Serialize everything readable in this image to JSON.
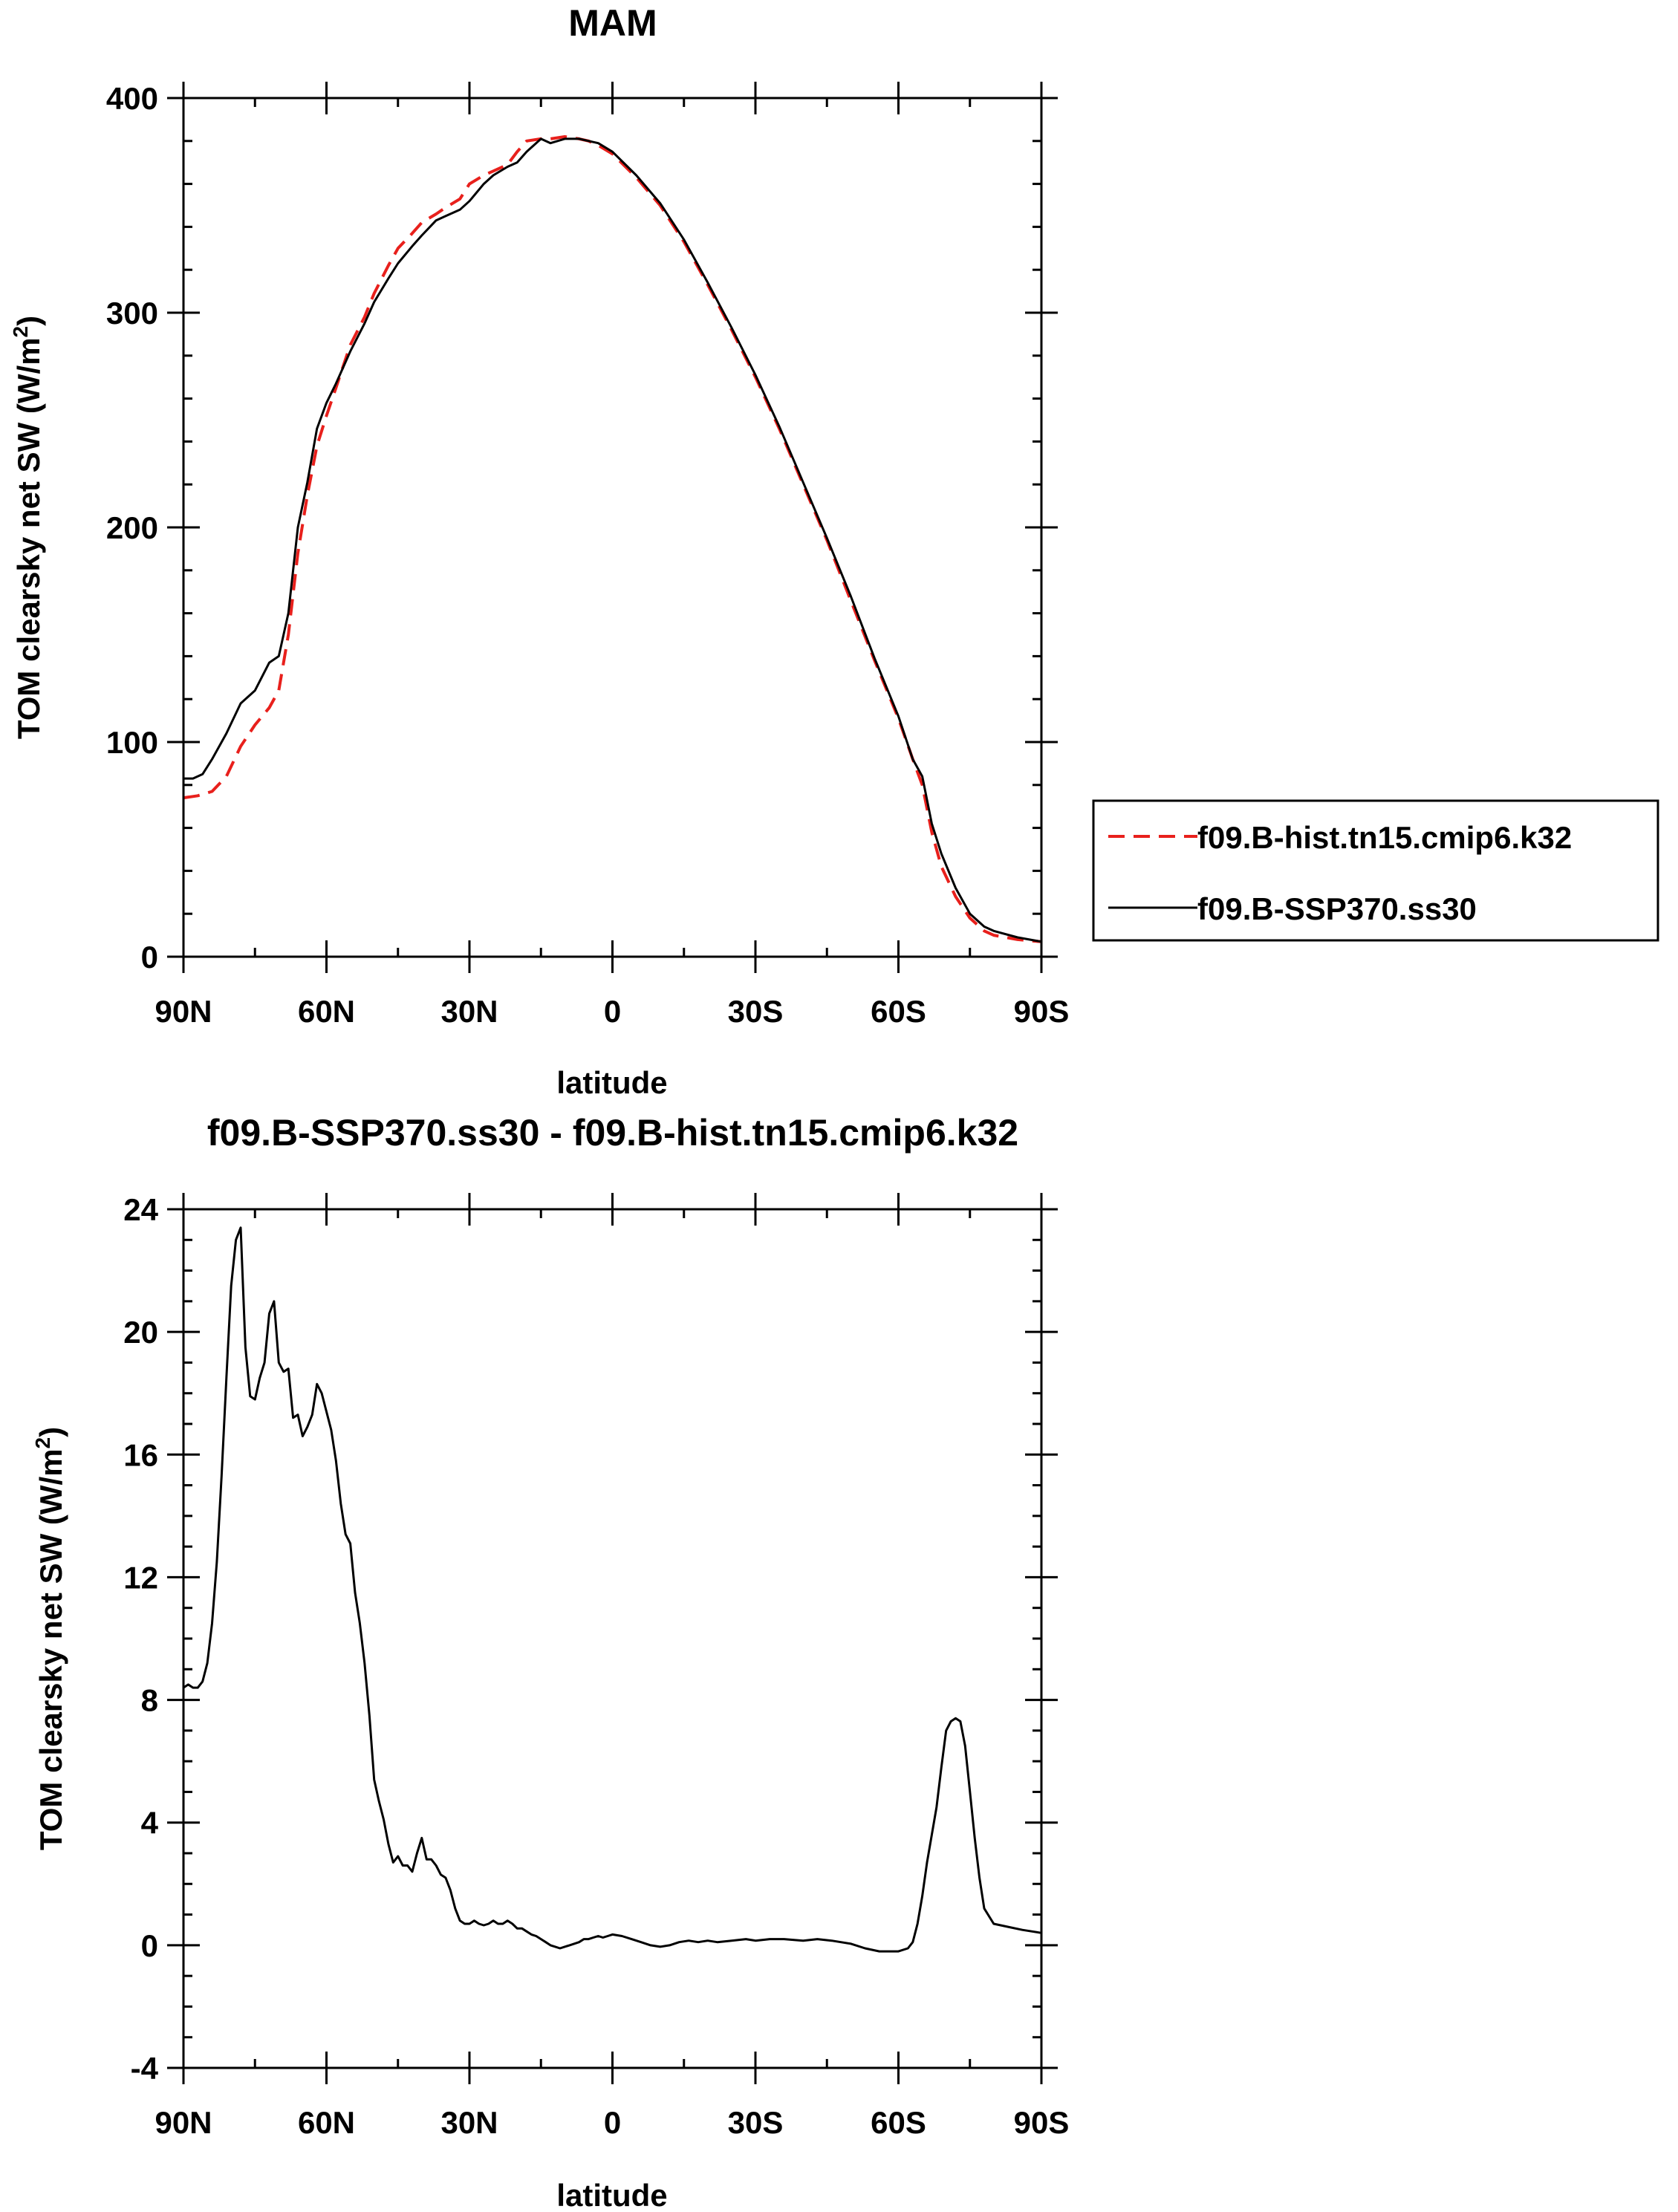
{
  "chart_data": [
    {
      "type": "line",
      "title": "MAM",
      "xlabel": "latitude",
      "ylabel_main": "TOM clearsky net SW (W/m",
      "ylabel_sup": "2",
      "ylabel_tail": ")",
      "xlim": [
        90,
        -90
      ],
      "ylim": [
        0,
        400
      ],
      "xticks": [
        90,
        60,
        30,
        0,
        -30,
        -60,
        -90
      ],
      "xtick_labels": [
        "90N",
        "60N",
        "30N",
        "0",
        "30S",
        "60S",
        "90S"
      ],
      "yticks": [
        0,
        100,
        200,
        300,
        400
      ],
      "ytick_labels": [
        "0",
        "100",
        "200",
        "300",
        "400"
      ],
      "grid": false,
      "legend_position": "right",
      "series": [
        {
          "name": "f09.B-hist.tn15.cmip6.k32",
          "color": "#e8201c",
          "style": "dashed",
          "x": [
            90,
            87,
            84,
            81,
            78,
            75,
            72,
            70,
            68,
            66,
            64,
            62,
            60,
            58,
            55,
            52,
            50,
            47,
            45,
            42,
            40,
            37,
            35,
            32,
            30,
            27,
            25,
            22,
            20,
            18,
            15,
            13,
            10,
            7,
            5,
            3,
            0,
            -5,
            -10,
            -15,
            -20,
            -25,
            -30,
            -35,
            -40,
            -45,
            -50,
            -55,
            -60,
            -63,
            -65,
            -67,
            -69,
            -72,
            -75,
            -78,
            -80,
            -85,
            -90
          ],
          "values": [
            74,
            75,
            77,
            84,
            98,
            108,
            116,
            124,
            150,
            188,
            215,
            238,
            252,
            265,
            285,
            298,
            309,
            322,
            330,
            337,
            342,
            346,
            349,
            353,
            360,
            364,
            366,
            369,
            375,
            380,
            381,
            381,
            382,
            381,
            380,
            378,
            374,
            363,
            350,
            333,
            313,
            292,
            270,
            246,
            220,
            194,
            166,
            138,
            111,
            92,
            80,
            58,
            42,
            28,
            18,
            12,
            10,
            8,
            7
          ]
        },
        {
          "name": "f09.B-SSP370.ss30",
          "color": "#000000",
          "style": "solid",
          "x": [
            90,
            88,
            86,
            84,
            81,
            78,
            75,
            72,
            70,
            68,
            66,
            64,
            62,
            60,
            58,
            55,
            52,
            50,
            47,
            45,
            42,
            40,
            37,
            35,
            32,
            30,
            27,
            25,
            22,
            20,
            18,
            15,
            13,
            10,
            7,
            5,
            3,
            0,
            -5,
            -10,
            -15,
            -20,
            -25,
            -30,
            -35,
            -40,
            -45,
            -50,
            -55,
            -60,
            -63,
            -65,
            -67,
            -69,
            -72,
            -75,
            -78,
            -80,
            -85,
            -90
          ],
          "values": [
            83,
            83,
            85,
            92,
            104,
            118,
            124,
            137,
            140,
            160,
            200,
            221,
            246,
            258,
            267,
            282,
            295,
            305,
            316,
            323,
            331,
            336,
            343,
            345,
            348,
            352,
            360,
            364,
            368,
            370,
            375,
            381,
            379,
            381,
            381,
            380,
            379,
            375,
            364,
            351,
            334,
            314,
            293,
            271,
            247,
            221,
            195,
            168,
            139,
            112,
            92,
            84,
            62,
            48,
            32,
            20,
            14,
            12,
            9,
            7
          ]
        }
      ]
    },
    {
      "type": "line",
      "title": "f09.B-SSP370.ss30 - f09.B-hist.tn15.cmip6.k32",
      "xlabel": "latitude",
      "ylabel_main": "TOM clearsky net SW (W/m",
      "ylabel_sup": "2",
      "ylabel_tail": ")",
      "xlim": [
        90,
        -90
      ],
      "ylim": [
        -4,
        24
      ],
      "xticks": [
        90,
        60,
        30,
        0,
        -30,
        -60,
        -90
      ],
      "xtick_labels": [
        "90N",
        "60N",
        "30N",
        "0",
        "30S",
        "60S",
        "90S"
      ],
      "yticks": [
        -4,
        0,
        4,
        8,
        12,
        16,
        20,
        24
      ],
      "ytick_labels": [
        "-4",
        "0",
        "4",
        "8",
        "12",
        "16",
        "20",
        "24"
      ],
      "grid": false,
      "series": [
        {
          "name": "f09.B-SSP370.ss30 - f09.B-hist.tn15.cmip6.k32",
          "color": "#000000",
          "style": "solid",
          "x": [
            90,
            89,
            88,
            87,
            86,
            85,
            84,
            83,
            82,
            81,
            80,
            79,
            78,
            77,
            76,
            75,
            74,
            73,
            72,
            71,
            70,
            69,
            68,
            67,
            66,
            65,
            64,
            63,
            62,
            61,
            60,
            59,
            58,
            57,
            56,
            55,
            54,
            53,
            52,
            51,
            50,
            49,
            48,
            47,
            46,
            45,
            44,
            43,
            42,
            41,
            40,
            39,
            38,
            37,
            36,
            35,
            34,
            33,
            32,
            31,
            30,
            29,
            28,
            27,
            26,
            25,
            24,
            23,
            22,
            21,
            20,
            19,
            18,
            17,
            16,
            15,
            14,
            13,
            12,
            11,
            10,
            9,
            8,
            7,
            6,
            5,
            4,
            3,
            2,
            1,
            0,
            -2,
            -4,
            -6,
            -8,
            -10,
            -12,
            -14,
            -16,
            -18,
            -20,
            -22,
            -25,
            -28,
            -30,
            -33,
            -36,
            -40,
            -43,
            -46,
            -50,
            -53,
            -56,
            -58,
            -60,
            -62,
            -63,
            -64,
            -65,
            -66,
            -67,
            -68,
            -69,
            -70,
            -71,
            -72,
            -73,
            -74,
            -75,
            -76,
            -77,
            -78,
            -80,
            -83,
            -86,
            -90
          ],
          "values": [
            8.4,
            8.5,
            8.4,
            8.4,
            8.6,
            9.2,
            10.5,
            12.5,
            15.3,
            18.5,
            21.5,
            23.0,
            23.4,
            19.5,
            17.9,
            17.8,
            18.5,
            19.0,
            20.6,
            21.0,
            19.0,
            18.7,
            18.8,
            17.2,
            17.3,
            16.6,
            16.9,
            17.3,
            18.3,
            18.0,
            17.4,
            16.8,
            15.8,
            14.4,
            13.4,
            13.1,
            11.5,
            10.5,
            9.2,
            7.5,
            5.4,
            4.7,
            4.1,
            3.3,
            2.7,
            2.9,
            2.6,
            2.6,
            2.4,
            3.0,
            3.5,
            2.8,
            2.8,
            2.6,
            2.3,
            2.2,
            1.8,
            1.2,
            0.8,
            0.7,
            0.7,
            0.8,
            0.7,
            0.65,
            0.7,
            0.8,
            0.7,
            0.7,
            0.8,
            0.7,
            0.55,
            0.55,
            0.45,
            0.35,
            0.3,
            0.2,
            0.1,
            0.0,
            -0.05,
            -0.1,
            -0.05,
            0.0,
            0.05,
            0.1,
            0.2,
            0.2,
            0.25,
            0.3,
            0.25,
            0.3,
            0.35,
            0.3,
            0.2,
            0.1,
            0.0,
            -0.05,
            0.0,
            0.1,
            0.15,
            0.1,
            0.15,
            0.1,
            0.15,
            0.2,
            0.15,
            0.2,
            0.2,
            0.15,
            0.2,
            0.15,
            0.05,
            -0.1,
            -0.2,
            -0.2,
            -0.2,
            -0.1,
            0.1,
            0.7,
            1.6,
            2.7,
            3.6,
            4.5,
            5.8,
            7.0,
            7.3,
            7.4,
            7.3,
            6.5,
            5.0,
            3.5,
            2.2,
            1.2,
            0.7,
            0.6,
            0.5,
            0.4
          ]
        }
      ]
    }
  ]
}
